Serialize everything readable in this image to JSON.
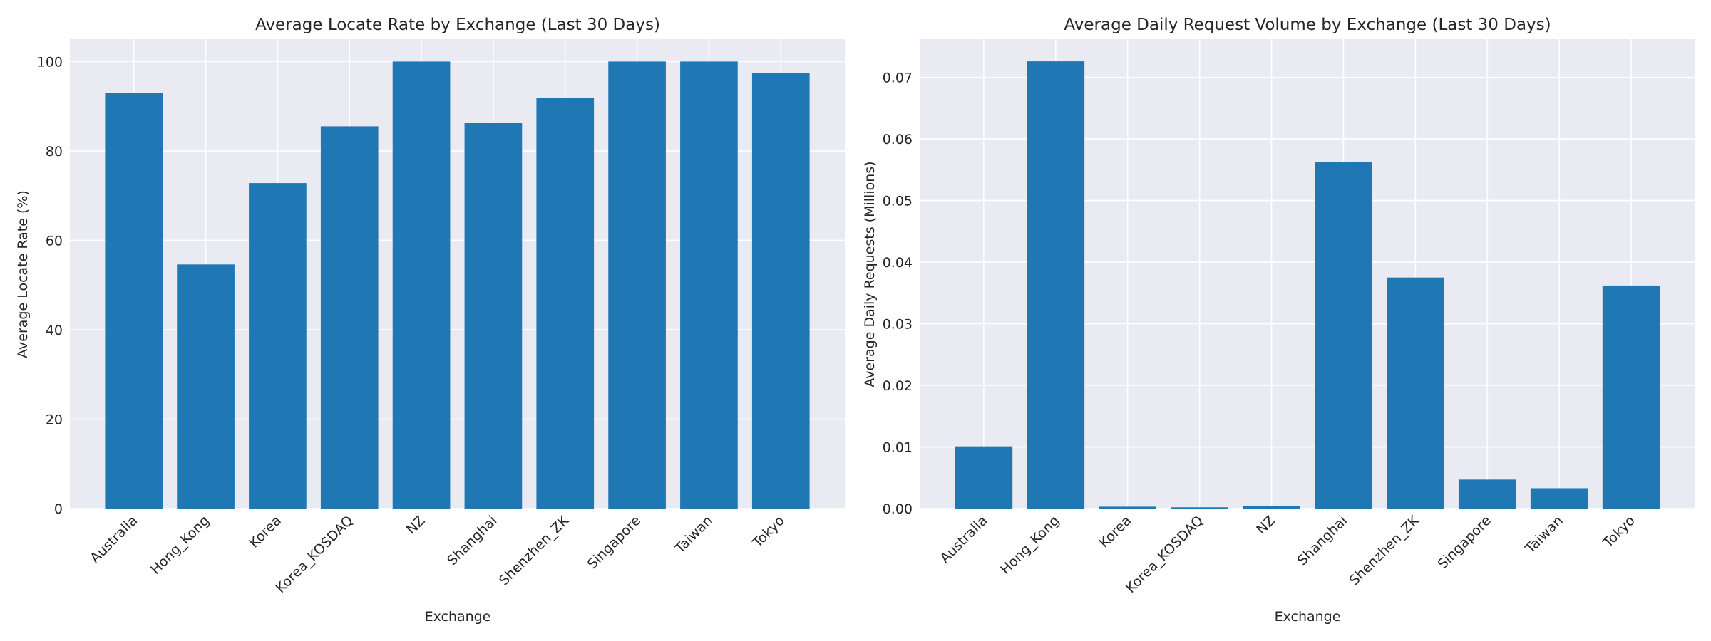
{
  "chart_data": [
    {
      "type": "bar",
      "title": "Average Locate Rate by Exchange (Last 30 Days)",
      "xlabel": "Exchange",
      "ylabel": "Average Locate Rate (%)",
      "categories": [
        "Australia",
        "Hong_Kong",
        "Korea",
        "Korea_KOSDAQ",
        "NZ",
        "Shanghai",
        "Shenzhen_ZK",
        "Singapore",
        "Taiwan",
        "Tokyo"
      ],
      "values": [
        93.0,
        54.6,
        72.8,
        85.5,
        100.0,
        86.3,
        91.9,
        100.0,
        100.0,
        97.4
      ],
      "ylim": [
        0,
        105
      ],
      "yticks": [
        0,
        20,
        40,
        60,
        80,
        100
      ],
      "ytick_labels": [
        "0",
        "20",
        "40",
        "60",
        "80",
        "100"
      ],
      "grid": true,
      "color": "#1f77b4",
      "background": "#eaeaf2"
    },
    {
      "type": "bar",
      "title": "Average Daily Request Volume by Exchange (Last 30 Days)",
      "xlabel": "Exchange",
      "ylabel": "Average Daily Requests (Millions)",
      "categories": [
        "Australia",
        "Hong_Kong",
        "Korea",
        "Korea_KOSDAQ",
        "NZ",
        "Shanghai",
        "Shenzhen_ZK",
        "Singapore",
        "Taiwan",
        "Tokyo"
      ],
      "values": [
        0.0101,
        0.0726,
        0.0003,
        0.0002,
        0.0004,
        0.0563,
        0.0375,
        0.0047,
        0.0033,
        0.0362
      ],
      "ylim": [
        0,
        0.0762
      ],
      "yticks": [
        0,
        0.01,
        0.02,
        0.03,
        0.04,
        0.05,
        0.06,
        0.07
      ],
      "ytick_labels": [
        "0.00",
        "0.01",
        "0.02",
        "0.03",
        "0.04",
        "0.05",
        "0.06",
        "0.07"
      ],
      "grid": true,
      "color": "#1f77b4",
      "background": "#eaeaf2"
    }
  ]
}
